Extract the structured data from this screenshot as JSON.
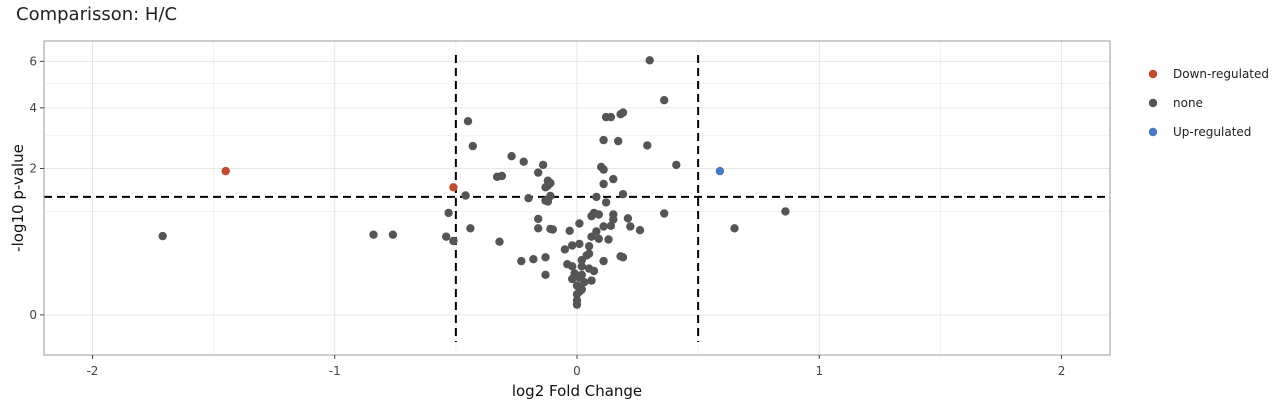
{
  "chart_data": {
    "type": "scatter",
    "title": "Comparisson: H/C",
    "xlabel": "log2 Fold Change",
    "ylabel": "-log10 p-value",
    "xlim": [
      -2.2,
      2.2
    ],
    "x_ticks": [
      -2,
      -1,
      0,
      1,
      2
    ],
    "x_tick_labels": [
      "-2",
      "-1",
      "0",
      "1",
      "2"
    ],
    "y_scale": "sqrt",
    "ylim": [
      -0.15,
      7.0
    ],
    "y_ticks": [
      0,
      2,
      4,
      6
    ],
    "y_tick_labels": [
      "0",
      "2",
      "4",
      "6"
    ],
    "grid": true,
    "legend_position": "right",
    "thresholds": {
      "log2fc": [
        -0.5,
        0.5
      ],
      "neg_log10_p": 1.3
    },
    "series": [
      {
        "name": "Down-regulated",
        "color": "#c24a2e",
        "points": [
          [
            -1.45,
            1.93
          ],
          [
            -0.51,
            1.52
          ]
        ]
      },
      {
        "name": "none",
        "color": "#555555",
        "points": [
          [
            0.3,
            6.05
          ],
          [
            0.36,
            4.3
          ],
          [
            0.19,
            3.82
          ],
          [
            0.18,
            3.76
          ],
          [
            0.12,
            3.65
          ],
          [
            0.14,
            3.65
          ],
          [
            -0.45,
            3.5
          ],
          [
            0.11,
            2.85
          ],
          [
            0.17,
            2.82
          ],
          [
            0.29,
            2.68
          ],
          [
            -0.43,
            2.66
          ],
          [
            -0.27,
            2.35
          ],
          [
            -0.22,
            2.19
          ],
          [
            -0.14,
            2.1
          ],
          [
            0.41,
            2.1
          ],
          [
            0.1,
            2.04
          ],
          [
            0.11,
            1.97
          ],
          [
            -0.16,
            1.89
          ],
          [
            -0.31,
            1.8
          ],
          [
            -0.33,
            1.78
          ],
          [
            0.15,
            1.72
          ],
          [
            -0.12,
            1.68
          ],
          [
            -0.11,
            1.62
          ],
          [
            0.11,
            1.6
          ],
          [
            -0.12,
            1.56
          ],
          [
            -0.13,
            1.52
          ],
          [
            -0.46,
            1.33
          ],
          [
            -0.11,
            1.32
          ],
          [
            0.19,
            1.36
          ],
          [
            0.08,
            1.3
          ],
          [
            -0.2,
            1.27
          ],
          [
            -0.13,
            1.22
          ],
          [
            -0.12,
            1.2
          ],
          [
            0.12,
            1.18
          ],
          [
            0.86,
            1.0
          ],
          [
            -0.53,
            0.97
          ],
          [
            0.07,
            0.97
          ],
          [
            0.09,
            0.94
          ],
          [
            0.15,
            0.94
          ],
          [
            0.36,
            0.96
          ],
          [
            0.06,
            0.91
          ],
          [
            0.21,
            0.87
          ],
          [
            -0.16,
            0.86
          ],
          [
            0.15,
            0.85
          ],
          [
            0.01,
            0.78
          ],
          [
            0.14,
            0.74
          ],
          [
            0.11,
            0.73
          ],
          [
            0.22,
            0.73
          ],
          [
            -0.44,
            0.7
          ],
          [
            -0.16,
            0.7
          ],
          [
            -0.11,
            0.69
          ],
          [
            -0.1,
            0.68
          ],
          [
            0.65,
            0.7
          ],
          [
            -0.03,
            0.66
          ],
          [
            0.08,
            0.65
          ],
          [
            0.26,
            0.67
          ],
          [
            -1.71,
            0.58
          ],
          [
            -0.84,
            0.6
          ],
          [
            -0.76,
            0.6
          ],
          [
            -0.54,
            0.57
          ],
          [
            0.06,
            0.57
          ],
          [
            0.09,
            0.54
          ],
          [
            0.13,
            0.53
          ],
          [
            -0.51,
            0.51
          ],
          [
            -0.32,
            0.5
          ],
          [
            0.01,
            0.47
          ],
          [
            -0.02,
            0.45
          ],
          [
            0.05,
            0.44
          ],
          [
            -0.05,
            0.4
          ],
          [
            0.05,
            0.35
          ],
          [
            0.04,
            0.33
          ],
          [
            0.18,
            0.32
          ],
          [
            -0.13,
            0.31
          ],
          [
            -0.18,
            0.29
          ],
          [
            -0.23,
            0.27
          ],
          [
            0.02,
            0.28
          ],
          [
            0.19,
            0.31
          ],
          [
            0.11,
            0.27
          ],
          [
            -0.04,
            0.24
          ],
          [
            -0.02,
            0.22
          ],
          [
            0.02,
            0.22
          ],
          [
            0.05,
            0.2
          ],
          [
            0.07,
            0.18
          ],
          [
            -0.01,
            0.16
          ],
          [
            0.02,
            0.15
          ],
          [
            0.01,
            0.13
          ],
          [
            -0.13,
            0.15
          ],
          [
            -0.02,
            0.12
          ],
          [
            0.06,
            0.11
          ],
          [
            0.03,
            0.1
          ],
          [
            0.0,
            0.08
          ],
          [
            0.02,
            0.06
          ],
          [
            0.01,
            0.05
          ],
          [
            0.0,
            0.04
          ],
          [
            0.0,
            0.02
          ],
          [
            0.0,
            0.01
          ]
        ]
      },
      {
        "name": "Up-regulated",
        "color": "#4a78c2",
        "points": [
          [
            0.59,
            1.93
          ]
        ]
      }
    ]
  }
}
